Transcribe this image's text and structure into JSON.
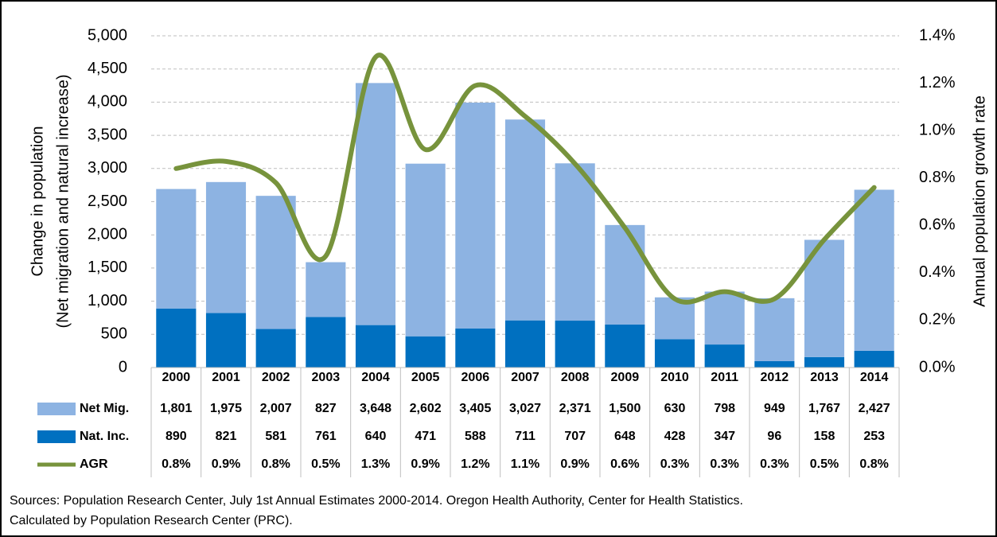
{
  "chart_data": {
    "type": "bar",
    "categories": [
      "2000",
      "2001",
      "2002",
      "2003",
      "2004",
      "2005",
      "2006",
      "2007",
      "2008",
      "2009",
      "2010",
      "2011",
      "2012",
      "2013",
      "2014"
    ],
    "series": [
      {
        "name": "Net Mig.",
        "type": "bar",
        "color": "#8db3e2",
        "values": [
          1801,
          1975,
          2007,
          827,
          3648,
          2602,
          3405,
          3027,
          2371,
          1500,
          630,
          798,
          949,
          1767,
          2427
        ],
        "value_labels": [
          "1,801",
          "1,975",
          "2,007",
          "827",
          "3,648",
          "2,602",
          "3,405",
          "3,027",
          "2,371",
          "1,500",
          "630",
          "798",
          "949",
          "1,767",
          "2,427"
        ]
      },
      {
        "name": "Nat. Inc.",
        "type": "bar",
        "color": "#0070c0",
        "values": [
          890,
          821,
          581,
          761,
          640,
          471,
          588,
          711,
          707,
          648,
          428,
          347,
          96,
          158,
          253
        ]
      },
      {
        "name": "AGR",
        "type": "line",
        "axis": "y2",
        "color": "#77933c",
        "values": [
          0.84,
          0.87,
          0.78,
          0.47,
          1.31,
          0.92,
          1.19,
          1.06,
          0.86,
          0.59,
          0.29,
          0.32,
          0.29,
          0.54,
          0.76
        ],
        "value_labels": [
          "0.8%",
          "0.9%",
          "0.8%",
          "0.5%",
          "1.3%",
          "0.9%",
          "1.2%",
          "1.1%",
          "0.9%",
          "0.6%",
          "0.3%",
          "0.3%",
          "0.3%",
          "0.5%",
          "0.8%"
        ]
      }
    ],
    "stacked": true,
    "ylim": [
      0,
      5000
    ],
    "yticks": [
      0,
      500,
      {
        "value": 1000,
        "label": "1,000"
      },
      {
        "value": 1500,
        "label": "1,500"
      },
      {
        "value": 2000,
        "label": "2,000"
      },
      {
        "value": 2500,
        "label": "2,500"
      },
      {
        "value": 3000,
        "label": "3,000"
      },
      {
        "value": 3500,
        "label": "3,500"
      },
      {
        "value": 4000,
        "label": "4,000"
      },
      {
        "value": 4500,
        "label": "4,500"
      },
      {
        "value": 5000,
        "label": "5,000"
      }
    ],
    "y2lim": [
      0,
      1.4
    ],
    "y2ticks": [
      {
        "value": 0,
        "label": "0.0%"
      },
      {
        "value": 0.2,
        "label": "0.2%"
      },
      {
        "value": 0.4,
        "label": "0.4%"
      },
      {
        "value": 0.6,
        "label": "0.6%"
      },
      {
        "value": 0.8,
        "label": "0.8%"
      },
      {
        "value": 1.0,
        "label": "1.0%"
      },
      {
        "value": 1.2,
        "label": "1.2%"
      },
      {
        "value": 1.4,
        "label": "1.4%"
      }
    ],
    "grid": true,
    "ylabel": [
      "Change in population",
      "(Net migration and natural increase)"
    ],
    "y2label": "Annual population growth rate",
    "notes": [
      "Sources: Population Research Center, July 1st Annual Estimates 2000-2014. Oregon Health Authority, Center for Health Statistics.",
      "Calculated by Population Research Center (PRC)."
    ]
  }
}
